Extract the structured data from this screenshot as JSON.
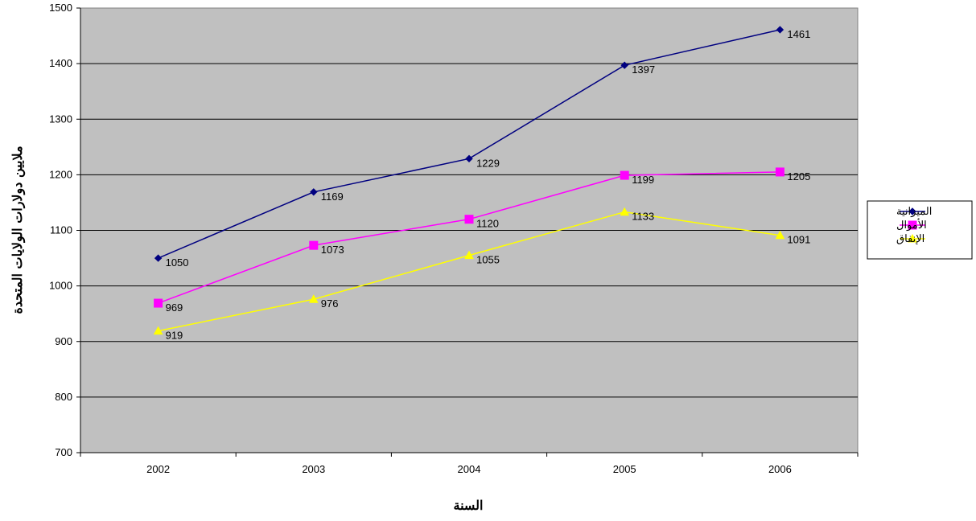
{
  "chart_data": {
    "type": "line",
    "categories": [
      "2002",
      "2003",
      "2004",
      "2005",
      "2006"
    ],
    "series": [
      {
        "name": "الميزانية",
        "color": "#000080",
        "marker": "diamond",
        "values": [
          1050,
          1169,
          1229,
          1397,
          1461
        ]
      },
      {
        "name": "الأموال",
        "color": "#FF00FF",
        "marker": "square",
        "values": [
          969,
          1073,
          1120,
          1199,
          1205
        ]
      },
      {
        "name": "الإنفاق",
        "color": "#FFFF00",
        "marker": "triangle",
        "values": [
          919,
          976,
          1055,
          1133,
          1091
        ]
      }
    ],
    "xlabel": "السنة",
    "ylabel": "ملايين دولارات الولايات المتحدة",
    "ylim": [
      700,
      1500
    ],
    "yticks": [
      700,
      800,
      900,
      1000,
      1100,
      1200,
      1300,
      1400,
      1500
    ],
    "grid": true,
    "plot_background": "#C0C0C0",
    "legend_position": "right"
  }
}
